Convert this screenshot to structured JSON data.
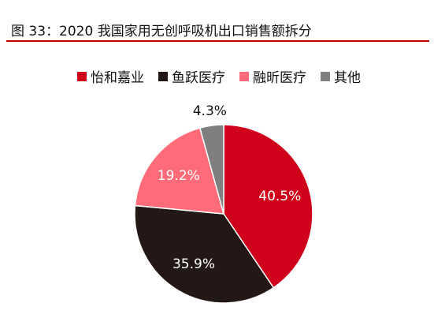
{
  "figure": {
    "title": "图 33：2020 我国家用无创呼吸机出口销售额拆分"
  },
  "colors": {
    "rule": "#c00000"
  },
  "chart_data": {
    "type": "pie",
    "title": "",
    "legend_position": "top",
    "start": "12 o'clock, clockwise",
    "slices": [
      {
        "label": "怡和嘉业",
        "value": 40.5,
        "display": "40.5%",
        "color": "#d0021b",
        "label_color": "#ffffff"
      },
      {
        "label": "鱼跃医疗",
        "value": 35.9,
        "display": "35.9%",
        "color": "#231815",
        "label_color": "#ffffff"
      },
      {
        "label": "融昕医疗",
        "value": 19.2,
        "display": "19.2%",
        "color": "#ff6b78",
        "label_color": "#ffffff"
      },
      {
        "label": "其他",
        "value": 4.3,
        "display": "4.3%",
        "color": "#7f7f7f",
        "label_color": "#111111"
      }
    ]
  }
}
